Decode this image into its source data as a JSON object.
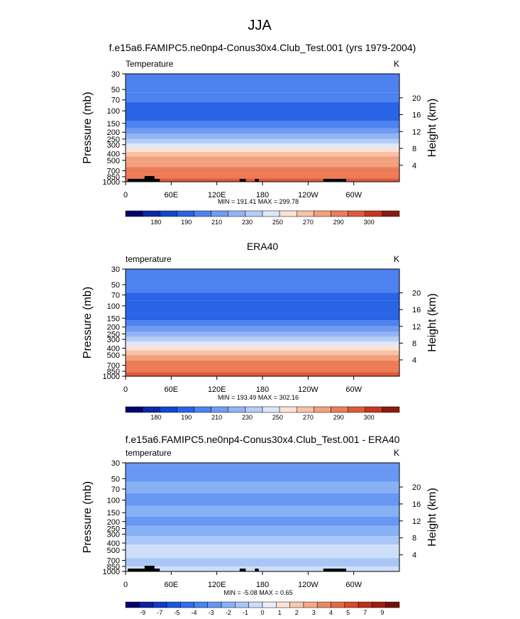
{
  "page": {
    "main_title": "JJA"
  },
  "chart_data": [
    {
      "type": "heatmap",
      "title": "f.e15a6.FAMIPC5.ne0np4-Conus30x4.Club_Test.001 (yrs 1979-2004)",
      "field_label": "Temperature",
      "units": "K",
      "ylabel": "Pressure (mb)",
      "ylabel_right": "Height (km)",
      "y_scale": "log",
      "y_ticks": [
        "30",
        "50",
        "70",
        "100",
        "150",
        "200",
        "250",
        "300",
        "400",
        "500",
        "700",
        "850",
        "1000"
      ],
      "y_right_ticks": [
        "20",
        "16",
        "12",
        "8",
        "4"
      ],
      "x_ticks": [
        "0",
        "60E",
        "120E",
        "180",
        "120W",
        "60W"
      ],
      "stats": "MIN = 191.41  MAX = 299.78",
      "colorbar_labels": [
        "180",
        "190",
        "210",
        "230",
        "250",
        "270",
        "290",
        "300"
      ],
      "colorbar_levels": [
        175,
        180,
        185,
        190,
        200,
        210,
        220,
        230,
        240,
        250,
        260,
        270,
        280,
        290,
        295,
        300
      ],
      "bands": [
        {
          "p_top": 30,
          "p_bot": 40,
          "value": 205
        },
        {
          "p_top": 40,
          "p_bot": 55,
          "value": 207
        },
        {
          "p_top": 55,
          "p_bot": 75,
          "value": 203
        },
        {
          "p_top": 75,
          "p_bot": 140,
          "value": 196
        },
        {
          "p_top": 140,
          "p_bot": 175,
          "value": 202
        },
        {
          "p_top": 175,
          "p_bot": 210,
          "value": 212
        },
        {
          "p_top": 210,
          "p_bot": 250,
          "value": 222
        },
        {
          "p_top": 250,
          "p_bot": 290,
          "value": 232
        },
        {
          "p_top": 290,
          "p_bot": 330,
          "value": 242
        },
        {
          "p_top": 330,
          "p_bot": 380,
          "value": 252
        },
        {
          "p_top": 380,
          "p_bot": 440,
          "value": 262
        },
        {
          "p_top": 440,
          "p_bot": 520,
          "value": 270
        },
        {
          "p_top": 520,
          "p_bot": 620,
          "value": 276
        },
        {
          "p_top": 620,
          "p_bot": 760,
          "value": 282
        },
        {
          "p_top": 760,
          "p_bot": 900,
          "value": 288
        },
        {
          "p_top": 900,
          "p_bot": 1000,
          "value": 293
        }
      ]
    },
    {
      "type": "heatmap",
      "title": "ERA40",
      "field_label": "temperature",
      "units": "K",
      "ylabel": "Pressure (mb)",
      "ylabel_right": "Height (km)",
      "y_scale": "log",
      "y_ticks": [
        "30",
        "50",
        "70",
        "100",
        "150",
        "200",
        "250",
        "300",
        "400",
        "500",
        "700",
        "850",
        "1000"
      ],
      "y_right_ticks": [
        "20",
        "16",
        "12",
        "8",
        "4"
      ],
      "x_ticks": [
        "0",
        "60E",
        "120E",
        "180",
        "120W",
        "60W"
      ],
      "stats": "MIN = 193.49  MAX = 302.16",
      "colorbar_labels": [
        "180",
        "190",
        "210",
        "230",
        "250",
        "270",
        "290",
        "300"
      ],
      "colorbar_levels": [
        175,
        180,
        185,
        190,
        200,
        210,
        220,
        230,
        240,
        250,
        260,
        270,
        280,
        290,
        295,
        300
      ],
      "bands": [
        {
          "p_top": 30,
          "p_bot": 45,
          "value": 205
        },
        {
          "p_top": 45,
          "p_bot": 65,
          "value": 203
        },
        {
          "p_top": 65,
          "p_bot": 85,
          "value": 199
        },
        {
          "p_top": 85,
          "p_bot": 125,
          "value": 194
        },
        {
          "p_top": 125,
          "p_bot": 160,
          "value": 199
        },
        {
          "p_top": 160,
          "p_bot": 195,
          "value": 205
        },
        {
          "p_top": 195,
          "p_bot": 235,
          "value": 215
        },
        {
          "p_top": 235,
          "p_bot": 275,
          "value": 225
        },
        {
          "p_top": 275,
          "p_bot": 320,
          "value": 235
        },
        {
          "p_top": 320,
          "p_bot": 370,
          "value": 245
        },
        {
          "p_top": 370,
          "p_bot": 430,
          "value": 255
        },
        {
          "p_top": 430,
          "p_bot": 500,
          "value": 265
        },
        {
          "p_top": 500,
          "p_bot": 600,
          "value": 272
        },
        {
          "p_top": 600,
          "p_bot": 740,
          "value": 280
        },
        {
          "p_top": 740,
          "p_bot": 880,
          "value": 287
        },
        {
          "p_top": 880,
          "p_bot": 1000,
          "value": 294
        }
      ]
    },
    {
      "type": "heatmap",
      "title": "f.e15a6.FAMIPC5.ne0np4-Conus30x4.Club_Test.001 - ERA40",
      "field_label": "temperature",
      "units": "K",
      "ylabel": "Pressure (mb)",
      "ylabel_right": "Height (km)",
      "y_scale": "log",
      "y_ticks": [
        "30",
        "50",
        "70",
        "100",
        "150",
        "200",
        "250",
        "300",
        "400",
        "500",
        "700",
        "850",
        "1000"
      ],
      "y_right_ticks": [
        "20",
        "16",
        "12",
        "8",
        "4"
      ],
      "x_ticks": [
        "0",
        "60E",
        "120E",
        "180",
        "120W",
        "60W"
      ],
      "stats": "MIN = -5.08  MAX =  0.65",
      "colorbar_labels": [
        "-9",
        "-7",
        "-5",
        "-4",
        "-3",
        "-2",
        "-1",
        "0",
        "1",
        "2",
        "3",
        "4",
        "5",
        "7",
        "9"
      ],
      "colorbar_levels": [
        -10,
        -9,
        -8,
        -7,
        -6,
        -5,
        -4,
        -3,
        -2,
        -1,
        0,
        1,
        2,
        3,
        4,
        5,
        6,
        7,
        8,
        9,
        10
      ],
      "bands": [
        {
          "p_top": 30,
          "p_bot": 55,
          "value": -3.5
        },
        {
          "p_top": 55,
          "p_bot": 80,
          "value": -2.5
        },
        {
          "p_top": 80,
          "p_bot": 120,
          "value": -3.5
        },
        {
          "p_top": 120,
          "p_bot": 170,
          "value": -2.5
        },
        {
          "p_top": 170,
          "p_bot": 230,
          "value": -3.5
        },
        {
          "p_top": 230,
          "p_bot": 320,
          "value": -2.5
        },
        {
          "p_top": 320,
          "p_bot": 420,
          "value": -1.5
        },
        {
          "p_top": 420,
          "p_bot": 650,
          "value": -0.5
        },
        {
          "p_top": 650,
          "p_bot": 850,
          "value": -1.5
        },
        {
          "p_top": 850,
          "p_bot": 1000,
          "value": -0.5
        }
      ]
    }
  ],
  "colors": {
    "temperature_scale": [
      "#08006e",
      "#0a2aa6",
      "#1147cc",
      "#2a63e6",
      "#4d82f0",
      "#6f9bf2",
      "#92b4f4",
      "#b6cdf6",
      "#dce8f8",
      "#fbe2d4",
      "#f8c2a6",
      "#f2a07e",
      "#ec7c58",
      "#e2583a",
      "#c83522",
      "#8c1a10"
    ],
    "difference_scale": [
      "#08006e",
      "#0a21a0",
      "#0e3bc6",
      "#1a56e0",
      "#2f6cf0",
      "#4a84f4",
      "#6898f4",
      "#88b0f5",
      "#a9c6f6",
      "#cddff8",
      "#e9f0fa",
      "#fbe4d6",
      "#f8c8ac",
      "#f3a988",
      "#ec8864",
      "#e36a44",
      "#d84a2c",
      "#c02f1c",
      "#a01c12",
      "#74100a"
    ],
    "topography": "#000000"
  }
}
